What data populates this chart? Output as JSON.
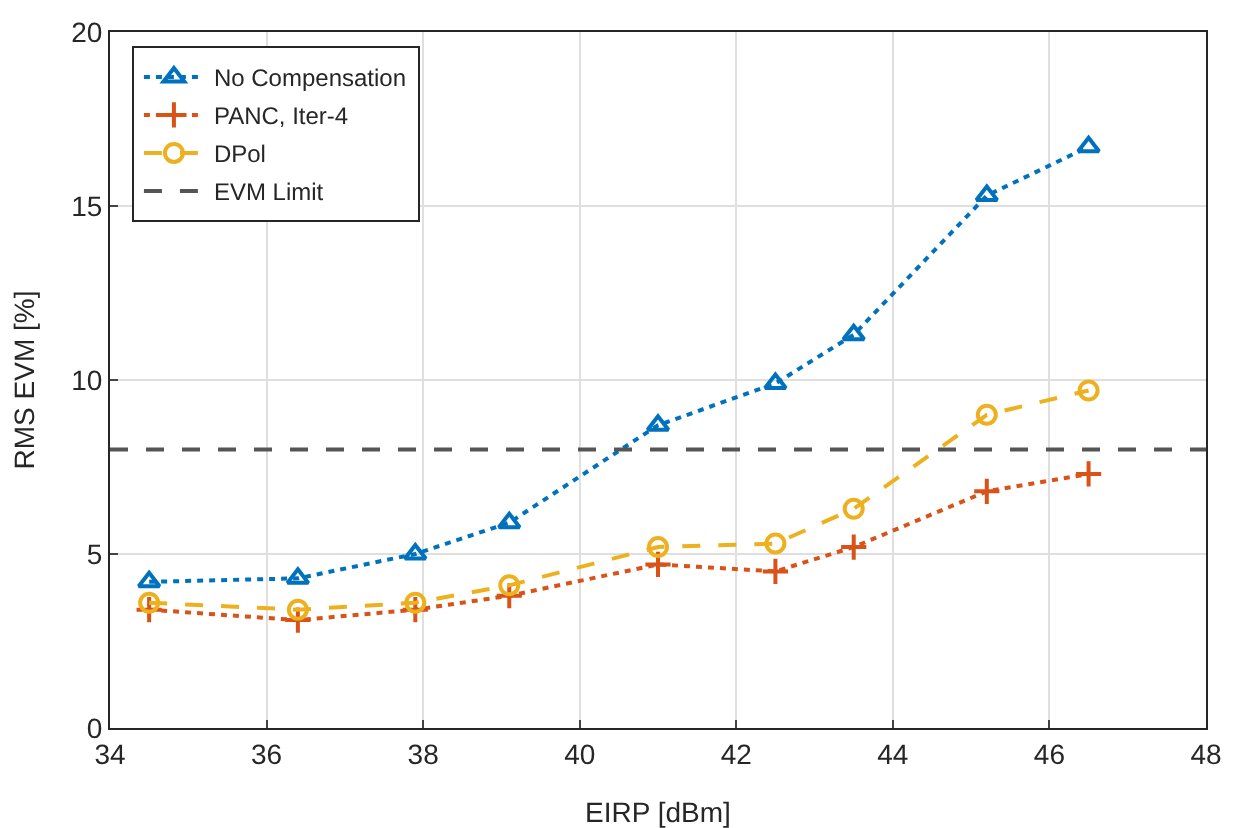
{
  "chart_data": {
    "type": "line",
    "xlabel": "EIRP [dBm]",
    "ylabel": "RMS EVM [%]",
    "xlim": [
      34,
      48
    ],
    "xticks": [
      34,
      36,
      38,
      40,
      42,
      44,
      46,
      48
    ],
    "ylim": [
      0,
      20
    ],
    "yticks": [
      0,
      5,
      10,
      15,
      20
    ],
    "grid": true,
    "legend": "top left",
    "series": [
      {
        "name": "No Compensation",
        "color": "#0072bd",
        "marker": "triangle",
        "line_style": "dotted",
        "x": [
          34.5,
          36.4,
          37.9,
          39.1,
          41.0,
          42.5,
          43.5,
          45.2,
          46.5
        ],
        "values": [
          4.2,
          4.3,
          5.0,
          5.9,
          8.7,
          9.9,
          11.3,
          15.3,
          16.7
        ]
      },
      {
        "name": "PANC, Iter-4",
        "color": "#d95319",
        "marker": "cross",
        "line_style": "dotted",
        "x": [
          34.5,
          36.4,
          37.9,
          39.1,
          41.0,
          42.5,
          43.5,
          45.2,
          46.5
        ],
        "values": [
          3.4,
          3.1,
          3.4,
          3.8,
          4.7,
          4.5,
          5.2,
          6.8,
          7.3
        ]
      },
      {
        "name": "DPol",
        "color": "#edb120",
        "marker": "circle",
        "line_style": "dashed",
        "x": [
          34.5,
          36.4,
          37.9,
          39.1,
          41.0,
          42.5,
          43.5,
          45.2,
          46.5
        ],
        "values": [
          3.6,
          3.4,
          3.6,
          4.1,
          5.2,
          5.3,
          6.3,
          9.0,
          9.7
        ]
      }
    ],
    "ref_lines": [
      {
        "axis": "y",
        "value": 8,
        "label": "EVM Limit",
        "color": "#555555",
        "line_style": "dashed"
      }
    ]
  }
}
